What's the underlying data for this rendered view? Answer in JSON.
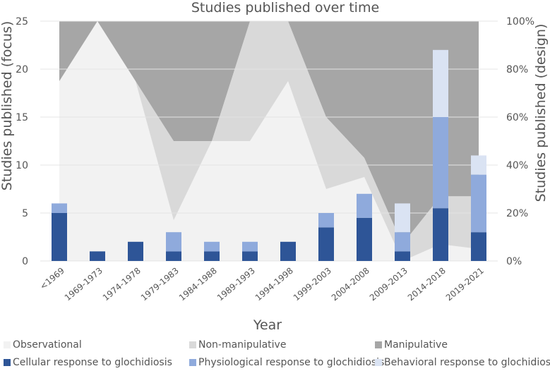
{
  "chart_data": {
    "type": "bar",
    "title": "Studies published over time",
    "xlabel": "Year",
    "ylabel": "Studies published (focus)",
    "y2label": "Studies published (design)",
    "ylim": [
      0,
      25
    ],
    "yticks": [
      0,
      5,
      10,
      15,
      20,
      25
    ],
    "y2lim": [
      0,
      100
    ],
    "y2ticks": [
      "0%",
      "20%",
      "40%",
      "60%",
      "80%",
      "100%"
    ],
    "categories": [
      "<1969",
      "1969-1973",
      "1974-1978",
      "1979-1983",
      "1984-1988",
      "1989-1993",
      "1994-1998",
      "1999-2003",
      "2004-2008",
      "2009-2013",
      "2014-2018",
      "2019-2021"
    ],
    "series": [
      {
        "name": "Cellular response to glochidiosis",
        "color": "#2e5597",
        "values": [
          5,
          1,
          2,
          1,
          1,
          1,
          2,
          3.5,
          4.5,
          1,
          5.5,
          3
        ]
      },
      {
        "name": "Physiological response to glochidiosis",
        "color": "#8faadc",
        "values": [
          1,
          0,
          0,
          2,
          1,
          1,
          0,
          1.5,
          2.5,
          2,
          9.5,
          6
        ]
      },
      {
        "name": "Behavioral response to glochidiosis",
        "color": "#dae3f3",
        "values": [
          0,
          0,
          0,
          0,
          0,
          0,
          0,
          0,
          0,
          3,
          7,
          2
        ]
      }
    ],
    "area_series": [
      {
        "name": "Observational",
        "color": "#f2f2f2",
        "values": [
          75,
          100,
          75,
          17,
          50,
          50,
          75,
          30,
          35,
          0,
          7,
          5
        ]
      },
      {
        "name": "Non-manipulative",
        "color": "#d9d9d9",
        "values": [
          0,
          0,
          0,
          33,
          0,
          50,
          25,
          30,
          8,
          7,
          20,
          22
        ]
      },
      {
        "name": "Manipulative",
        "color": "#a6a6a6",
        "values": [
          25,
          0,
          25,
          50,
          50,
          0,
          0,
          40,
          57,
          93,
          73,
          73
        ]
      }
    ],
    "legend": {
      "position": "bottom",
      "items": [
        "Observational",
        "Non-manipulative",
        "Manipulative",
        "Cellular response to glochidiosis",
        "Physiological response to glochidiosis",
        "Behavioral response to glochidiosis"
      ]
    },
    "grid": true
  }
}
